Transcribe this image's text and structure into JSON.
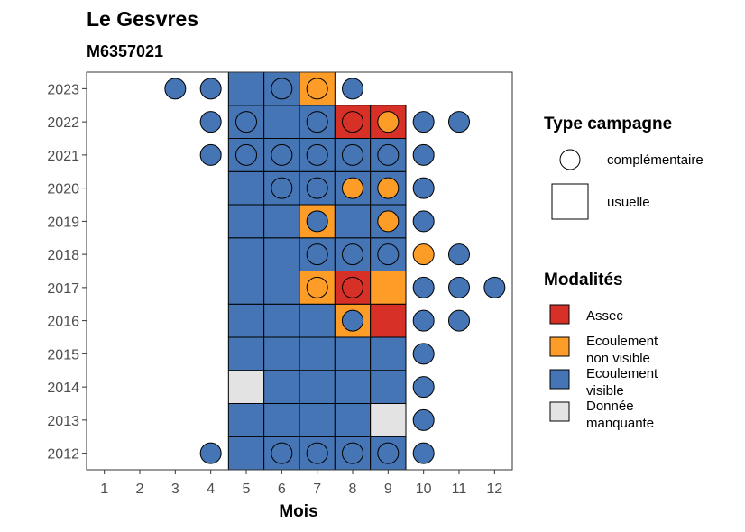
{
  "chart_data": {
    "type": "heatmap",
    "title": "Le Gesvres",
    "subtitle": "M6357021",
    "xlabel": "Mois",
    "ylabel": "",
    "x_ticks": [
      "1",
      "2",
      "3",
      "4",
      "5",
      "6",
      "7",
      "8",
      "9",
      "10",
      "11",
      "12"
    ],
    "y_ticks": [
      "2012",
      "2013",
      "2014",
      "2015",
      "2016",
      "2017",
      "2018",
      "2019",
      "2020",
      "2021",
      "2022",
      "2023"
    ],
    "xlim": [
      0.5,
      12.5
    ],
    "ylim": [
      2011.5,
      2023.5
    ],
    "colors": {
      "Assec": "#d73027",
      "Ecoulement non visible": "#fd9d28",
      "Ecoulement visible": "#4575b4",
      "Donnée manquante": "#e3e3e3"
    },
    "legend_type": {
      "title": "Type campagne",
      "items": [
        "complémentaire",
        "usuelle"
      ]
    },
    "legend_modalites": {
      "title": "Modalités",
      "items": [
        {
          "key": "Assec",
          "lines": [
            "Assec"
          ]
        },
        {
          "key": "Ecoulement non visible",
          "lines": [
            "Ecoulement",
            "non visible"
          ]
        },
        {
          "key": "Ecoulement visible",
          "lines": [
            "Ecoulement",
            "visible"
          ]
        },
        {
          "key": "Donnée manquante",
          "lines": [
            "Donnée",
            "manquante"
          ]
        }
      ]
    },
    "usuelle": [
      {
        "year": 2012,
        "month": 5,
        "modalite": "Ecoulement visible"
      },
      {
        "year": 2012,
        "month": 6,
        "modalite": "Ecoulement visible"
      },
      {
        "year": 2012,
        "month": 7,
        "modalite": "Ecoulement visible"
      },
      {
        "year": 2012,
        "month": 8,
        "modalite": "Ecoulement visible"
      },
      {
        "year": 2012,
        "month": 9,
        "modalite": "Ecoulement visible"
      },
      {
        "year": 2013,
        "month": 5,
        "modalite": "Ecoulement visible"
      },
      {
        "year": 2013,
        "month": 6,
        "modalite": "Ecoulement visible"
      },
      {
        "year": 2013,
        "month": 7,
        "modalite": "Ecoulement visible"
      },
      {
        "year": 2013,
        "month": 8,
        "modalite": "Ecoulement visible"
      },
      {
        "year": 2013,
        "month": 9,
        "modalite": "Donnée manquante"
      },
      {
        "year": 2014,
        "month": 5,
        "modalite": "Donnée manquante"
      },
      {
        "year": 2014,
        "month": 6,
        "modalite": "Ecoulement visible"
      },
      {
        "year": 2014,
        "month": 7,
        "modalite": "Ecoulement visible"
      },
      {
        "year": 2014,
        "month": 8,
        "modalite": "Ecoulement visible"
      },
      {
        "year": 2014,
        "month": 9,
        "modalite": "Ecoulement visible"
      },
      {
        "year": 2015,
        "month": 5,
        "modalite": "Ecoulement visible"
      },
      {
        "year": 2015,
        "month": 6,
        "modalite": "Ecoulement visible"
      },
      {
        "year": 2015,
        "month": 7,
        "modalite": "Ecoulement visible"
      },
      {
        "year": 2015,
        "month": 8,
        "modalite": "Ecoulement visible"
      },
      {
        "year": 2015,
        "month": 9,
        "modalite": "Ecoulement visible"
      },
      {
        "year": 2016,
        "month": 5,
        "modalite": "Ecoulement visible"
      },
      {
        "year": 2016,
        "month": 6,
        "modalite": "Ecoulement visible"
      },
      {
        "year": 2016,
        "month": 7,
        "modalite": "Ecoulement visible"
      },
      {
        "year": 2016,
        "month": 8,
        "modalite": "Ecoulement non visible"
      },
      {
        "year": 2016,
        "month": 9,
        "modalite": "Assec"
      },
      {
        "year": 2017,
        "month": 5,
        "modalite": "Ecoulement visible"
      },
      {
        "year": 2017,
        "month": 6,
        "modalite": "Ecoulement visible"
      },
      {
        "year": 2017,
        "month": 7,
        "modalite": "Ecoulement non visible"
      },
      {
        "year": 2017,
        "month": 8,
        "modalite": "Assec"
      },
      {
        "year": 2017,
        "month": 9,
        "modalite": "Ecoulement non visible"
      },
      {
        "year": 2018,
        "month": 5,
        "modalite": "Ecoulement visible"
      },
      {
        "year": 2018,
        "month": 6,
        "modalite": "Ecoulement visible"
      },
      {
        "year": 2018,
        "month": 7,
        "modalite": "Ecoulement visible"
      },
      {
        "year": 2018,
        "month": 8,
        "modalite": "Ecoulement visible"
      },
      {
        "year": 2018,
        "month": 9,
        "modalite": "Ecoulement visible"
      },
      {
        "year": 2019,
        "month": 5,
        "modalite": "Ecoulement visible"
      },
      {
        "year": 2019,
        "month": 6,
        "modalite": "Ecoulement visible"
      },
      {
        "year": 2019,
        "month": 7,
        "modalite": "Ecoulement non visible"
      },
      {
        "year": 2019,
        "month": 8,
        "modalite": "Ecoulement visible"
      },
      {
        "year": 2019,
        "month": 9,
        "modalite": "Ecoulement visible"
      },
      {
        "year": 2020,
        "month": 5,
        "modalite": "Ecoulement visible"
      },
      {
        "year": 2020,
        "month": 6,
        "modalite": "Ecoulement visible"
      },
      {
        "year": 2020,
        "month": 7,
        "modalite": "Ecoulement visible"
      },
      {
        "year": 2020,
        "month": 8,
        "modalite": "Ecoulement visible"
      },
      {
        "year": 2020,
        "month": 9,
        "modalite": "Ecoulement visible"
      },
      {
        "year": 2021,
        "month": 5,
        "modalite": "Ecoulement visible"
      },
      {
        "year": 2021,
        "month": 6,
        "modalite": "Ecoulement visible"
      },
      {
        "year": 2021,
        "month": 7,
        "modalite": "Ecoulement visible"
      },
      {
        "year": 2021,
        "month": 8,
        "modalite": "Ecoulement visible"
      },
      {
        "year": 2021,
        "month": 9,
        "modalite": "Ecoulement visible"
      },
      {
        "year": 2022,
        "month": 5,
        "modalite": "Ecoulement visible"
      },
      {
        "year": 2022,
        "month": 6,
        "modalite": "Ecoulement visible"
      },
      {
        "year": 2022,
        "month": 7,
        "modalite": "Ecoulement visible"
      },
      {
        "year": 2022,
        "month": 8,
        "modalite": "Assec"
      },
      {
        "year": 2022,
        "month": 9,
        "modalite": "Assec"
      },
      {
        "year": 2023,
        "month": 5,
        "modalite": "Ecoulement visible"
      },
      {
        "year": 2023,
        "month": 6,
        "modalite": "Ecoulement visible"
      },
      {
        "year": 2023,
        "month": 7,
        "modalite": "Ecoulement non visible"
      }
    ],
    "complementaire": [
      {
        "year": 2012,
        "month": 4,
        "modalite": "Ecoulement visible"
      },
      {
        "year": 2012,
        "month": 6,
        "modalite": "Ecoulement visible"
      },
      {
        "year": 2012,
        "month": 7,
        "modalite": "Ecoulement visible"
      },
      {
        "year": 2012,
        "month": 8,
        "modalite": "Ecoulement visible"
      },
      {
        "year": 2012,
        "month": 9,
        "modalite": "Ecoulement visible"
      },
      {
        "year": 2012,
        "month": 10,
        "modalite": "Ecoulement visible"
      },
      {
        "year": 2013,
        "month": 10,
        "modalite": "Ecoulement visible"
      },
      {
        "year": 2014,
        "month": 10,
        "modalite": "Ecoulement visible"
      },
      {
        "year": 2015,
        "month": 10,
        "modalite": "Ecoulement visible"
      },
      {
        "year": 2016,
        "month": 8,
        "modalite": "Ecoulement visible"
      },
      {
        "year": 2016,
        "month": 10,
        "modalite": "Ecoulement visible"
      },
      {
        "year": 2016,
        "month": 11,
        "modalite": "Ecoulement visible"
      },
      {
        "year": 2017,
        "month": 7,
        "modalite": "Ecoulement non visible"
      },
      {
        "year": 2017,
        "month": 8,
        "modalite": "Assec"
      },
      {
        "year": 2017,
        "month": 10,
        "modalite": "Ecoulement visible"
      },
      {
        "year": 2017,
        "month": 11,
        "modalite": "Ecoulement visible"
      },
      {
        "year": 2017,
        "month": 12,
        "modalite": "Ecoulement visible"
      },
      {
        "year": 2018,
        "month": 7,
        "modalite": "Ecoulement visible"
      },
      {
        "year": 2018,
        "month": 8,
        "modalite": "Ecoulement visible"
      },
      {
        "year": 2018,
        "month": 9,
        "modalite": "Ecoulement visible"
      },
      {
        "year": 2018,
        "month": 10,
        "modalite": "Ecoulement non visible"
      },
      {
        "year": 2018,
        "month": 11,
        "modalite": "Ecoulement visible"
      },
      {
        "year": 2019,
        "month": 7,
        "modalite": "Ecoulement visible"
      },
      {
        "year": 2019,
        "month": 9,
        "modalite": "Ecoulement non visible"
      },
      {
        "year": 2019,
        "month": 10,
        "modalite": "Ecoulement visible"
      },
      {
        "year": 2020,
        "month": 6,
        "modalite": "Ecoulement visible"
      },
      {
        "year": 2020,
        "month": 7,
        "modalite": "Ecoulement visible"
      },
      {
        "year": 2020,
        "month": 8,
        "modalite": "Ecoulement non visible"
      },
      {
        "year": 2020,
        "month": 9,
        "modalite": "Ecoulement non visible"
      },
      {
        "year": 2020,
        "month": 10,
        "modalite": "Ecoulement visible"
      },
      {
        "year": 2021,
        "month": 4,
        "modalite": "Ecoulement visible"
      },
      {
        "year": 2021,
        "month": 5,
        "modalite": "Ecoulement visible"
      },
      {
        "year": 2021,
        "month": 6,
        "modalite": "Ecoulement visible"
      },
      {
        "year": 2021,
        "month": 7,
        "modalite": "Ecoulement visible"
      },
      {
        "year": 2021,
        "month": 8,
        "modalite": "Ecoulement visible"
      },
      {
        "year": 2021,
        "month": 9,
        "modalite": "Ecoulement visible"
      },
      {
        "year": 2021,
        "month": 10,
        "modalite": "Ecoulement visible"
      },
      {
        "year": 2022,
        "month": 4,
        "modalite": "Ecoulement visible"
      },
      {
        "year": 2022,
        "month": 5,
        "modalite": "Ecoulement visible"
      },
      {
        "year": 2022,
        "month": 7,
        "modalite": "Ecoulement visible"
      },
      {
        "year": 2022,
        "month": 8,
        "modalite": "Assec"
      },
      {
        "year": 2022,
        "month": 9,
        "modalite": "Ecoulement non visible"
      },
      {
        "year": 2022,
        "month": 10,
        "modalite": "Ecoulement visible"
      },
      {
        "year": 2022,
        "month": 11,
        "modalite": "Ecoulement visible"
      },
      {
        "year": 2023,
        "month": 3,
        "modalite": "Ecoulement visible"
      },
      {
        "year": 2023,
        "month": 4,
        "modalite": "Ecoulement visible"
      },
      {
        "year": 2023,
        "month": 6,
        "modalite": "Ecoulement visible"
      },
      {
        "year": 2023,
        "month": 7,
        "modalite": "Ecoulement non visible"
      },
      {
        "year": 2023,
        "month": 8,
        "modalite": "Ecoulement visible"
      }
    ]
  }
}
